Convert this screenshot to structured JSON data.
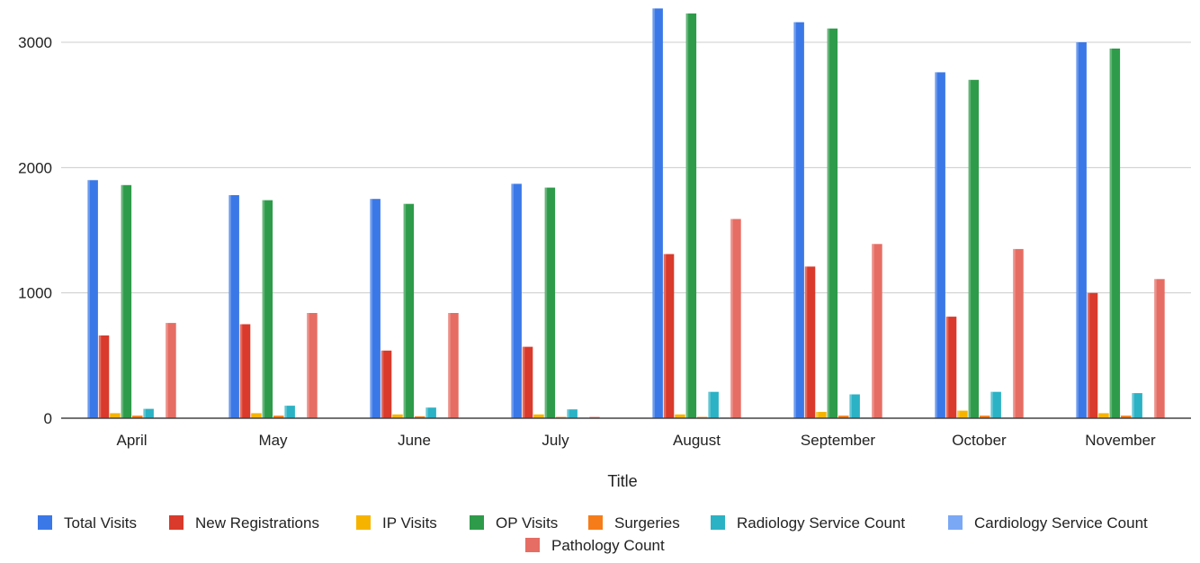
{
  "chart_data": {
    "type": "bar",
    "title": "",
    "xlabel": "Title",
    "ylabel": "",
    "ylim": [
      0,
      3300
    ],
    "yticks": [
      0,
      1000,
      2000,
      3000
    ],
    "grid": true,
    "legend_position": "bottom",
    "categories": [
      "April",
      "May",
      "June",
      "July",
      "August",
      "September",
      "October",
      "November"
    ],
    "series": [
      {
        "name": "Total Visits",
        "color": "#3b78e7",
        "values": [
          1900,
          1780,
          1750,
          1870,
          3270,
          3160,
          2760,
          3000
        ]
      },
      {
        "name": "New Registrations",
        "color": "#d93a2b",
        "values": [
          660,
          750,
          540,
          570,
          1310,
          1210,
          810,
          1000
        ]
      },
      {
        "name": "IP Visits",
        "color": "#f6b400",
        "values": [
          40,
          40,
          30,
          30,
          30,
          50,
          60,
          40
        ]
      },
      {
        "name": "OP Visits",
        "color": "#2e9b4a",
        "values": [
          1860,
          1740,
          1710,
          1840,
          3230,
          3110,
          2700,
          2950
        ]
      },
      {
        "name": "Surgeries",
        "color": "#f57c18",
        "values": [
          20,
          20,
          15,
          10,
          10,
          20,
          20,
          20
        ]
      },
      {
        "name": "Radiology Service Count",
        "color": "#2bb2c4",
        "values": [
          75,
          100,
          85,
          70,
          210,
          190,
          210,
          200
        ]
      },
      {
        "name": "Cardiology Service Count",
        "color": "#7aa8f5",
        "values": [
          5,
          5,
          5,
          5,
          5,
          5,
          5,
          5
        ]
      },
      {
        "name": "Pathology Count",
        "color": "#e66d63",
        "values": [
          760,
          840,
          840,
          10,
          1590,
          1390,
          1350,
          1110
        ]
      }
    ]
  }
}
